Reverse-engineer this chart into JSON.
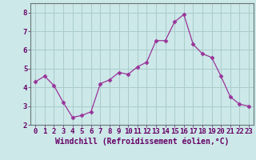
{
  "x": [
    0,
    1,
    2,
    3,
    4,
    5,
    6,
    7,
    8,
    9,
    10,
    11,
    12,
    13,
    14,
    15,
    16,
    17,
    18,
    19,
    20,
    21,
    22,
    23
  ],
  "y": [
    4.3,
    4.6,
    4.1,
    3.2,
    2.4,
    2.5,
    2.7,
    4.2,
    4.4,
    4.8,
    4.7,
    5.1,
    5.35,
    6.5,
    6.5,
    7.5,
    7.9,
    6.3,
    5.8,
    5.6,
    4.6,
    3.5,
    3.1,
    3.0
  ],
  "line_color": "#993399",
  "marker": "D",
  "marker_size": 2.5,
  "bg_color": "#cce8e8",
  "grid_color": "#aacccc",
  "xlabel": "Windchill (Refroidissement éolien,°C)",
  "xlabel_color": "#660066",
  "xlabel_fontsize": 7,
  "tick_color": "#660066",
  "tick_fontsize": 6.5,
  "xlim": [
    -0.5,
    23.5
  ],
  "ylim": [
    2.0,
    8.5
  ],
  "yticks": [
    2,
    3,
    4,
    5,
    6,
    7,
    8
  ],
  "xticks": [
    0,
    1,
    2,
    3,
    4,
    5,
    6,
    7,
    8,
    9,
    10,
    11,
    12,
    13,
    14,
    15,
    16,
    17,
    18,
    19,
    20,
    21,
    22,
    23
  ]
}
